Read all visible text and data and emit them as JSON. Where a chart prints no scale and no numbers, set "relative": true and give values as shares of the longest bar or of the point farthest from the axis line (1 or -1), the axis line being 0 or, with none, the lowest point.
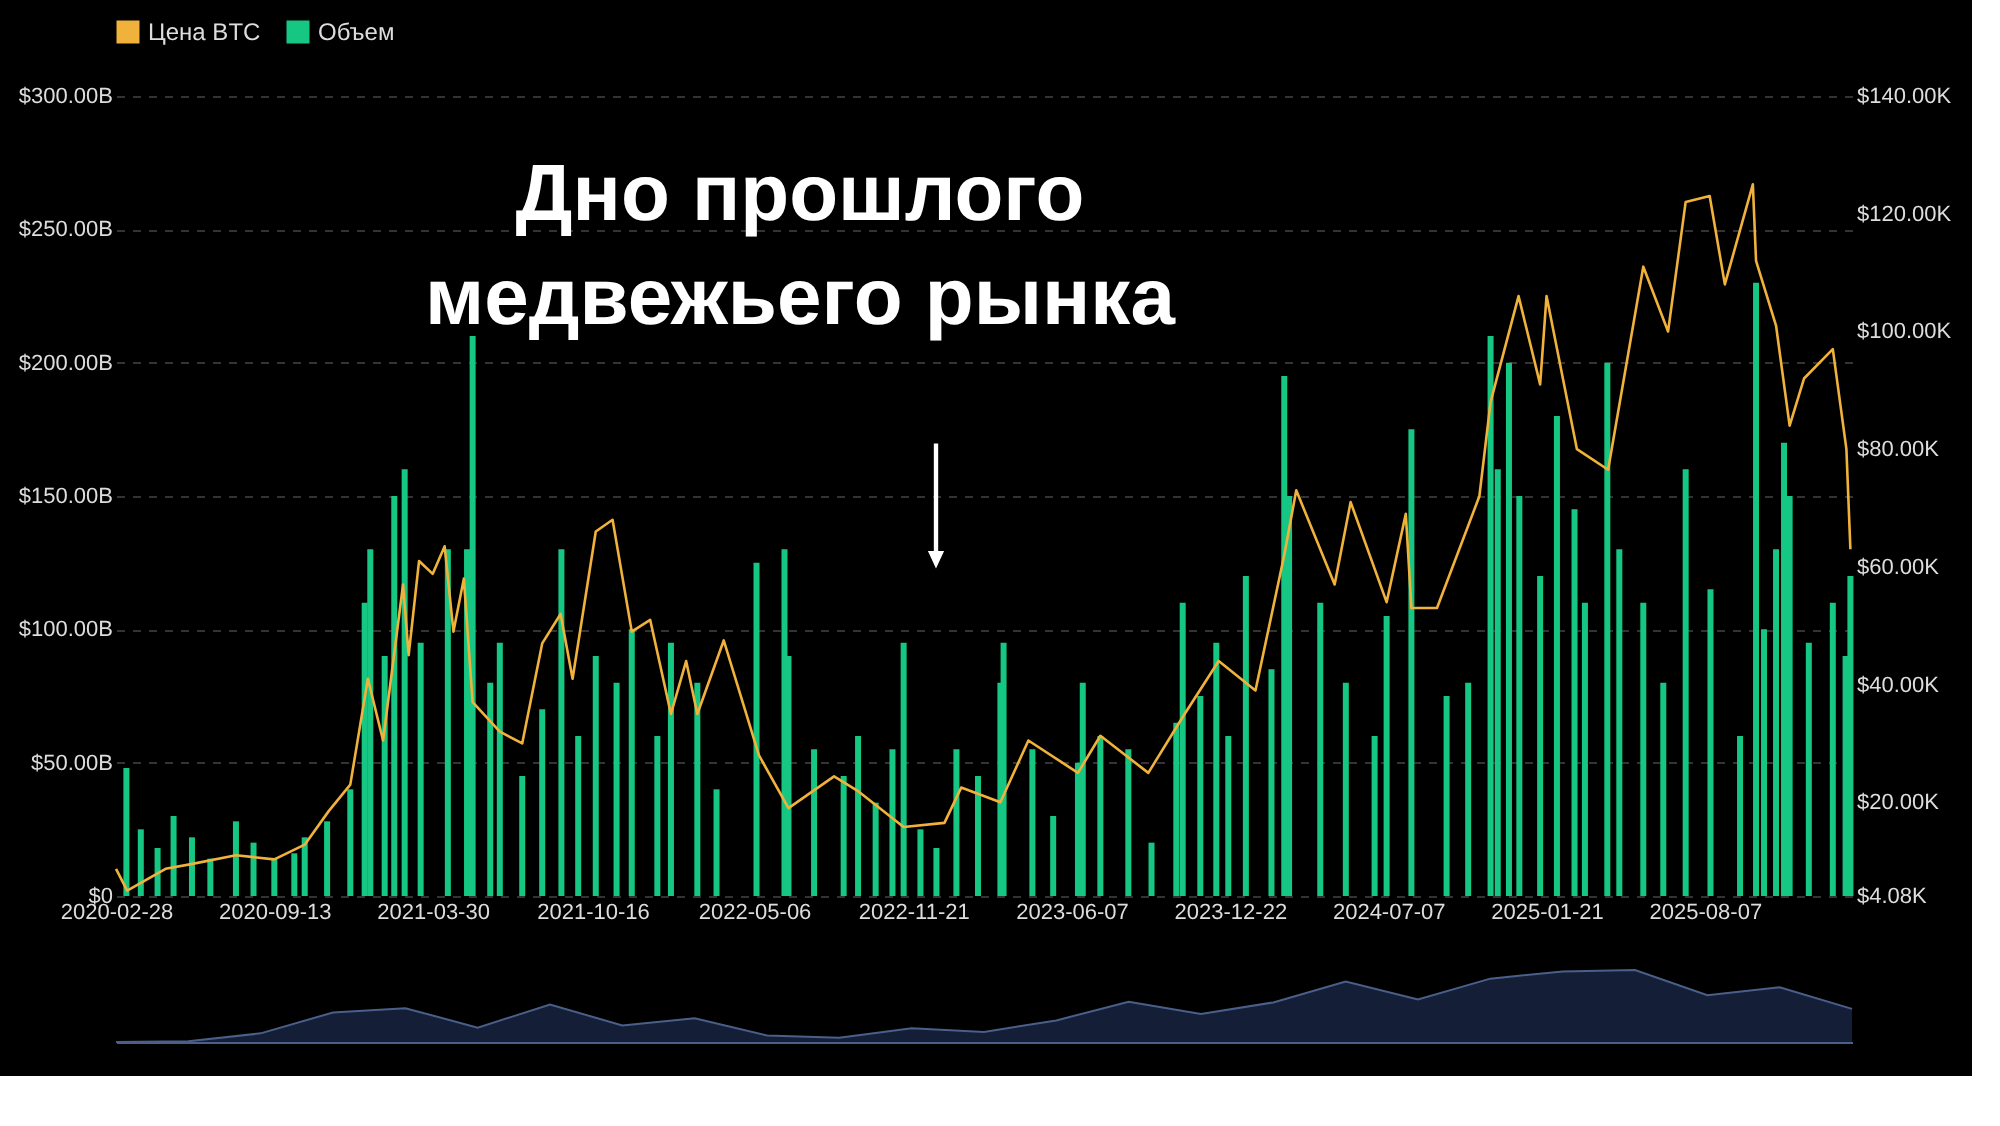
{
  "chart_data": [
    {
      "type": "bar",
      "legend": "top",
      "grid": "y",
      "annotations": [
        "Дно прошлого\nмедвежьего рынка"
      ],
      "xlim": [
        "2020-02-28",
        "2026-02-07"
      ],
      "xticks": [
        "2020-02-28",
        "2020-09-13",
        "2021-03-30",
        "2021-10-16",
        "2022-05-06",
        "2022-11-21",
        "2023-06-07",
        "2023-12-22",
        "2024-07-07",
        "2025-01-21",
        "2025-08-07"
      ],
      "ylim": [
        0,
        300000000000
      ],
      "yticks": [
        {
          "value": 0,
          "label": "$0"
        },
        {
          "value": 50000000000,
          "label": "$50.00B"
        },
        {
          "value": 100000000000,
          "label": "$100.00B"
        },
        {
          "value": 150000000000,
          "label": "$150.00B"
        },
        {
          "value": 200000000000,
          "label": "$200.00B"
        },
        {
          "value": 250000000000,
          "label": "$250.00B"
        },
        {
          "value": 300000000000,
          "label": "$300.00B"
        }
      ],
      "y2lim": [
        4080,
        140000
      ],
      "y2ticks": [
        {
          "value": 4080,
          "label": "$4.08K"
        },
        {
          "value": 20000,
          "label": "$20.00K"
        },
        {
          "value": 40000,
          "label": "$40.00K"
        },
        {
          "value": 60000,
          "label": "$60.00K"
        },
        {
          "value": 80000,
          "label": "$80.00K"
        },
        {
          "value": 100000,
          "label": "$100.00K"
        },
        {
          "value": 120000,
          "label": "$120.00K"
        },
        {
          "value": 140000,
          "label": "$140.00K"
        }
      ],
      "series": [
        {
          "name": "Цена BTC",
          "type": "line",
          "axis": "y2",
          "color": "#f0b23a",
          "x": [
            "2020-02-28",
            "2020-03-13",
            "2020-04-30",
            "2020-06-01",
            "2020-07-27",
            "2020-09-13",
            "2020-10-21",
            "2020-11-20",
            "2020-12-17",
            "2021-01-08",
            "2021-01-27",
            "2021-02-21",
            "2021-02-28",
            "2021-03-13",
            "2021-03-30",
            "2021-04-14",
            "2021-04-25",
            "2021-05-08",
            "2021-05-19",
            "2021-06-22",
            "2021-07-20",
            "2021-08-14",
            "2021-09-06",
            "2021-09-21",
            "2021-10-20",
            "2021-11-10",
            "2021-12-04",
            "2021-12-27",
            "2022-01-22",
            "2022-02-10",
            "2022-02-24",
            "2022-03-29",
            "2022-05-12",
            "2022-06-18",
            "2022-08-14",
            "2022-09-12",
            "2022-11-09",
            "2022-12-30",
            "2023-01-20",
            "2023-03-10",
            "2023-04-14",
            "2023-06-15",
            "2023-07-13",
            "2023-09-11",
            "2023-10-24",
            "2023-12-08",
            "2024-01-23",
            "2024-02-28",
            "2024-03-14",
            "2024-05-01",
            "2024-05-21",
            "2024-07-05",
            "2024-07-29",
            "2024-08-05",
            "2024-09-06",
            "2024-10-29",
            "2024-11-12",
            "2024-12-17",
            "2025-01-13",
            "2025-01-21",
            "2025-02-28",
            "2025-04-08",
            "2025-05-22",
            "2025-06-22",
            "2025-07-14",
            "2025-08-13",
            "2025-09-01",
            "2025-10-06",
            "2025-10-10",
            "2025-11-04",
            "2025-11-21",
            "2025-12-09",
            "2026-01-14",
            "2026-01-31",
            "2026-02-05"
          ],
          "values": [
            8700,
            5000,
            8700,
            9500,
            11000,
            10300,
            12800,
            18500,
            23000,
            41000,
            30500,
            57000,
            45000,
            61000,
            58800,
            63500,
            49000,
            58000,
            37000,
            32000,
            30000,
            47000,
            52000,
            41000,
            66000,
            68000,
            49000,
            51000,
            35000,
            44000,
            35000,
            47500,
            28000,
            19000,
            24400,
            22000,
            15800,
            16500,
            22500,
            20000,
            30500,
            25000,
            31300,
            25000,
            34500,
            44000,
            39000,
            62000,
            73000,
            57000,
            71000,
            54000,
            69000,
            53000,
            53000,
            72000,
            88000,
            106000,
            91000,
            106000,
            80000,
            76500,
            111000,
            100000,
            122000,
            123000,
            108000,
            125000,
            112000,
            101000,
            84000,
            92000,
            97000,
            80000,
            63000
          ]
        },
        {
          "name": "Объем",
          "type": "bar",
          "axis": "y",
          "color": "#16c784",
          "x": [
            "2020-03-12",
            "2020-03-30",
            "2020-04-20",
            "2020-05-10",
            "2020-06-02",
            "2020-06-25",
            "2020-07-27",
            "2020-08-18",
            "2020-09-13",
            "2020-10-08",
            "2020-10-21",
            "2020-11-18",
            "2020-12-17",
            "2021-01-04",
            "2021-01-11",
            "2021-01-29",
            "2021-02-10",
            "2021-02-23",
            "2021-03-15",
            "2021-04-18",
            "2021-05-12",
            "2021-05-19",
            "2021-06-10",
            "2021-06-22",
            "2021-07-20",
            "2021-08-14",
            "2021-09-07",
            "2021-09-28",
            "2021-10-20",
            "2021-11-15",
            "2021-12-04",
            "2022-01-05",
            "2022-01-22",
            "2022-02-24",
            "2022-03-20",
            "2022-05-09",
            "2022-06-13",
            "2022-06-18",
            "2022-07-20",
            "2022-08-26",
            "2022-09-13",
            "2022-10-05",
            "2022-10-26",
            "2022-11-09",
            "2022-11-30",
            "2022-12-20",
            "2023-01-14",
            "2023-02-10",
            "2023-03-10",
            "2023-03-14",
            "2023-04-19",
            "2023-05-15",
            "2023-06-15",
            "2023-06-21",
            "2023-07-13",
            "2023-08-17",
            "2023-09-15",
            "2023-10-16",
            "2023-10-24",
            "2023-11-15",
            "2023-12-05",
            "2023-12-20",
            "2024-01-11",
            "2024-02-12",
            "2024-02-28",
            "2024-03-05",
            "2024-04-13",
            "2024-05-15",
            "2024-06-20",
            "2024-07-05",
            "2024-08-05",
            "2024-09-18",
            "2024-10-15",
            "2024-11-12",
            "2024-11-21",
            "2024-12-05",
            "2024-12-18",
            "2025-01-13",
            "2025-02-03",
            "2025-02-25",
            "2025-03-10",
            "2025-04-07",
            "2025-04-22",
            "2025-05-22",
            "2025-06-16",
            "2025-07-14",
            "2025-08-14",
            "2025-09-20",
            "2025-10-10",
            "2025-10-20",
            "2025-11-04",
            "2025-11-14",
            "2025-11-21",
            "2025-12-15",
            "2026-01-14",
            "2026-01-30",
            "2026-02-05"
          ],
          "values": [
            48000000000,
            25000000000,
            18000000000,
            30000000000,
            22000000000,
            14000000000,
            28000000000,
            20000000000,
            14000000000,
            16000000000,
            22000000000,
            28000000000,
            40000000000,
            110000000000,
            130000000000,
            90000000000,
            150000000000,
            160000000000,
            95000000000,
            130000000000,
            130000000000,
            210000000000,
            80000000000,
            95000000000,
            45000000000,
            70000000000,
            130000000000,
            60000000000,
            90000000000,
            80000000000,
            100000000000,
            60000000000,
            95000000000,
            80000000000,
            40000000000,
            125000000000,
            130000000000,
            90000000000,
            55000000000,
            45000000000,
            60000000000,
            35000000000,
            55000000000,
            95000000000,
            25000000000,
            18000000000,
            55000000000,
            45000000000,
            80000000000,
            95000000000,
            55000000000,
            30000000000,
            50000000000,
            80000000000,
            60000000000,
            55000000000,
            20000000000,
            65000000000,
            110000000000,
            75000000000,
            95000000000,
            60000000000,
            120000000000,
            85000000000,
            195000000000,
            150000000000,
            110000000000,
            80000000000,
            60000000000,
            105000000000,
            175000000000,
            75000000000,
            80000000000,
            210000000000,
            160000000000,
            200000000000,
            150000000000,
            120000000000,
            180000000000,
            145000000000,
            110000000000,
            200000000000,
            130000000000,
            110000000000,
            80000000000,
            160000000000,
            115000000000,
            60000000000,
            230000000000,
            100000000000,
            130000000000,
            170000000000,
            150000000000,
            95000000000,
            110000000000,
            90000000000,
            120000000000
          ]
        }
      ]
    },
    {
      "type": "area",
      "relative": true,
      "color": "#1c2b4f",
      "categories": [
        null,
        null,
        null,
        null,
        null,
        null,
        null,
        null,
        null,
        null,
        null,
        null,
        null,
        null,
        null,
        null,
        null,
        null,
        null,
        null,
        null,
        null,
        null,
        null,
        null
      ],
      "values": [
        0,
        0.01,
        0.12,
        0.41,
        0.47,
        0.2,
        0.52,
        0.23,
        0.33,
        0.09,
        0.06,
        0.19,
        0.14,
        0.3,
        0.56,
        0.39,
        0.55,
        0.84,
        0.59,
        0.88,
        0.98,
        1.0,
        0.65,
        0.76,
        0.46
      ]
    }
  ]
}
